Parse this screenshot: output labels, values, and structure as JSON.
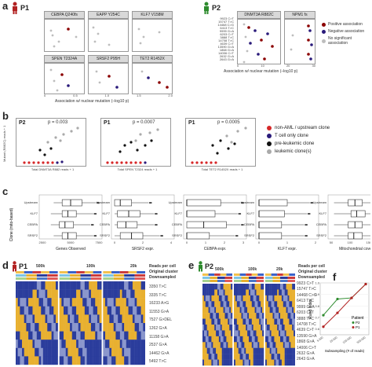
{
  "colors": {
    "positive": "#8b0000",
    "negative": "#2a1a7a",
    "nosig": "#bdbdbd",
    "p1": "#b22222",
    "p2": "#2e8b2e",
    "red_clone": "#d62728",
    "heat_blue": "#2b3d9c",
    "heat_yellow": "#e8b030",
    "heat_white": "#eeeeee"
  },
  "panel_labels": {
    "a": "a",
    "b": "b",
    "c": "c",
    "d": "d",
    "e": "e",
    "f": "f"
  },
  "panel_a": {
    "p1_title": "P1",
    "p2_title": "P2",
    "facets_p1_row1": [
      "CEBPA Q240fs",
      "EAPP Y254C",
      "KLF7 V158M"
    ],
    "facets_p1_row2": [
      "SPEN T2324A",
      "SRSF2 P95H",
      "TET2 R1452X"
    ],
    "facets_p2": [
      "DNMT3A R882C",
      "NPM1 fs"
    ],
    "xlabel_p1": "Association w/ nuclear mutation (–log10 p)",
    "xlabel_p2": "Association w/ nuclear mutation (–log10 p)",
    "p1_ticks_left": [
      "0",
      "0.5",
      "1.0",
      "1.5",
      "2.0"
    ],
    "p1_ticks_right": [
      "0",
      "0.5",
      "1.0",
      "1.5"
    ],
    "p2_ticks": [
      "0",
      "10",
      "20",
      "30"
    ],
    "p2_yticks": [
      "9923 C>T",
      "15747 T>C",
      "14468 C>G",
      "6413 T>C",
      "9999 G>A",
      "6203 C>T",
      "3888 T>C",
      "14708 T>C",
      "4639 C>T",
      "13590 G>A",
      "1868 G>A",
      "14006 C>T",
      "2632 G>A",
      "2643 G>A"
    ],
    "legend": {
      "positive": "Positive association",
      "negative": "Negative association",
      "nosig": "No significant association"
    }
  },
  "panel_b": {
    "plots": [
      {
        "patient": "P2",
        "p": "p = 0.003",
        "ylabel": "Mutant (R882C) reads + 1",
        "xlabel": "Total DNMT3A R882 reads + 1"
      },
      {
        "patient": "P1",
        "p": "p = 0.0007",
        "ylabel": "Mutant (SPEN T2324A) reads + 1",
        "xlabel": "Total SPEN T2324 reads + 1"
      },
      {
        "patient": "P1",
        "p": "p = 0.0005",
        "ylabel": "Mutant (TET2 R1452X) reads + 1",
        "xlabel": "Total TET2 R1452X reads + 1"
      }
    ],
    "legend": [
      {
        "label": "non-AML / upstream clone",
        "color": "#d62728"
      },
      {
        "label": "T cell only clone",
        "color": "#2a1a7a"
      },
      {
        "label": "pre-leukemic clone",
        "color": "#111111"
      },
      {
        "label": "leukemic clone(s)",
        "color": "#aaaaaa"
      }
    ]
  },
  "panel_c": {
    "ylabel": "Clone (mito-based)",
    "clones": [
      "Upstream",
      "KLF7",
      "CEBPA",
      "SRSF2"
    ],
    "panels": [
      {
        "xlabel": "Genes Observed",
        "ticks": [
          "2500",
          "5000",
          "7500"
        ]
      },
      {
        "xlabel": "SRSF2 expr.",
        "ticks": [
          "0",
          "2",
          "4"
        ]
      },
      {
        "xlabel": "CEBPA expr.",
        "ticks": [
          "0",
          "1",
          "2",
          "3"
        ]
      },
      {
        "xlabel": "KLF7 expr.",
        "ticks": [
          "0",
          "1",
          "2"
        ]
      },
      {
        "xlabel": "Mitochondrial coverage",
        "ticks": [
          "50",
          "100",
          "150",
          "200"
        ]
      }
    ]
  },
  "panel_d": {
    "title": "P1",
    "depths": [
      "500k",
      "100k",
      "20k"
    ],
    "legend_lines": [
      "Reads per cell",
      "Original cluster",
      "Downsampled"
    ],
    "rows": [
      "3350 T>C",
      "3335 T>C",
      "16233 A>G",
      "11553 G>A",
      "7527 G>DEL",
      "1262 G>A",
      "11158 G>A",
      "2537 G>A",
      "14462 G>A",
      "5492 T>C"
    ]
  },
  "panel_e": {
    "title": "P2",
    "depths": [
      "500k",
      "100k",
      "20k"
    ],
    "legend_lines": [
      "Reads per cell",
      "Original cluster",
      "Downsampled"
    ],
    "rows": [
      "9923 C>T",
      "15747 T>C",
      "14468 C>G",
      "6413 T>C",
      "9999 G>A",
      "6203 C>T",
      "3888 T>C",
      "14708 T>C",
      "4639 C>T",
      "13590 G>A",
      "1868 G>A",
      "14006 C>T",
      "2632 G>A",
      "2643 G>A"
    ]
  },
  "panel_f": {
    "ylabel": "Rand index",
    "xlabel": "Subsampling (# of reads)",
    "legend_title": "Patient",
    "series_names": [
      "P2",
      "P1"
    ],
    "xticks": [
      "5,000",
      "20,000",
      "100,000",
      "500,000"
    ],
    "yticks": [
      "0.6",
      "0.7",
      "0.8",
      "0.9",
      "1.0"
    ]
  },
  "chart_data": {
    "type": "line",
    "xlabel": "Subsampling (# of reads)",
    "ylabel": "Rand index",
    "x": [
      5000,
      20000,
      100000,
      500000
    ],
    "ylim": [
      0.55,
      1.0
    ],
    "series": [
      {
        "name": "P2",
        "color": "#2e8b2e",
        "values": [
          0.72,
          0.86,
          0.87,
          0.99
        ]
      },
      {
        "name": "P1",
        "color": "#b22222",
        "values": [
          0.62,
          0.74,
          0.87,
          0.99
        ]
      }
    ]
  }
}
